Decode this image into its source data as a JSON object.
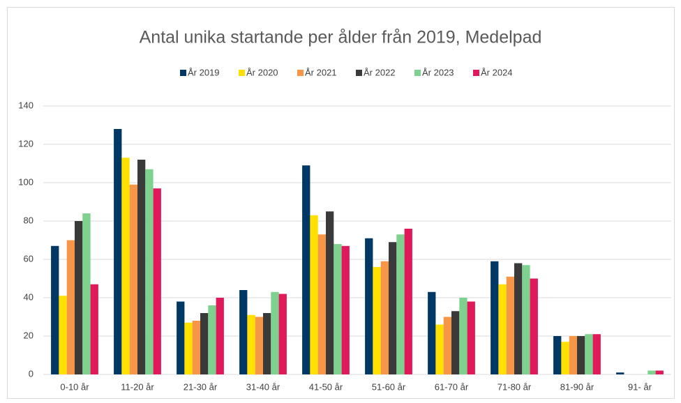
{
  "chart_data": {
    "type": "bar",
    "title": "Antal unika startande per ålder från 2019, Medelpad",
    "categories": [
      "0-10 år",
      "11-20 år",
      "21-30 år",
      "31-40 år",
      "41-50 år",
      "51-60 år",
      "61-70 år",
      "71-80 år",
      "81-90 år",
      "91- år"
    ],
    "series": [
      {
        "name": "År 2019",
        "color": "#003865",
        "values": [
          67,
          128,
          38,
          44,
          109,
          71,
          43,
          59,
          20,
          1
        ]
      },
      {
        "name": "År 2020",
        "color": "#ffe000",
        "values": [
          41,
          113,
          27,
          31,
          83,
          56,
          26,
          47,
          17,
          0
        ]
      },
      {
        "name": "År 2021",
        "color": "#f79646",
        "values": [
          70,
          99,
          28,
          30,
          73,
          59,
          30,
          51,
          20,
          0
        ]
      },
      {
        "name": "År 2022",
        "color": "#3a3a3a",
        "values": [
          80,
          112,
          32,
          32,
          85,
          69,
          33,
          58,
          20,
          0
        ]
      },
      {
        "name": "År 2023",
        "color": "#7fd18f",
        "values": [
          84,
          107,
          36,
          43,
          68,
          73,
          40,
          57,
          21,
          2
        ]
      },
      {
        "name": "År 2024",
        "color": "#e0195a",
        "values": [
          47,
          97,
          40,
          42,
          67,
          76,
          38,
          50,
          21,
          2
        ]
      }
    ],
    "ylim": [
      0,
      140
    ],
    "yticks": [
      0,
      20,
      40,
      60,
      80,
      100,
      120,
      140
    ],
    "grid": true,
    "legend": "top"
  }
}
